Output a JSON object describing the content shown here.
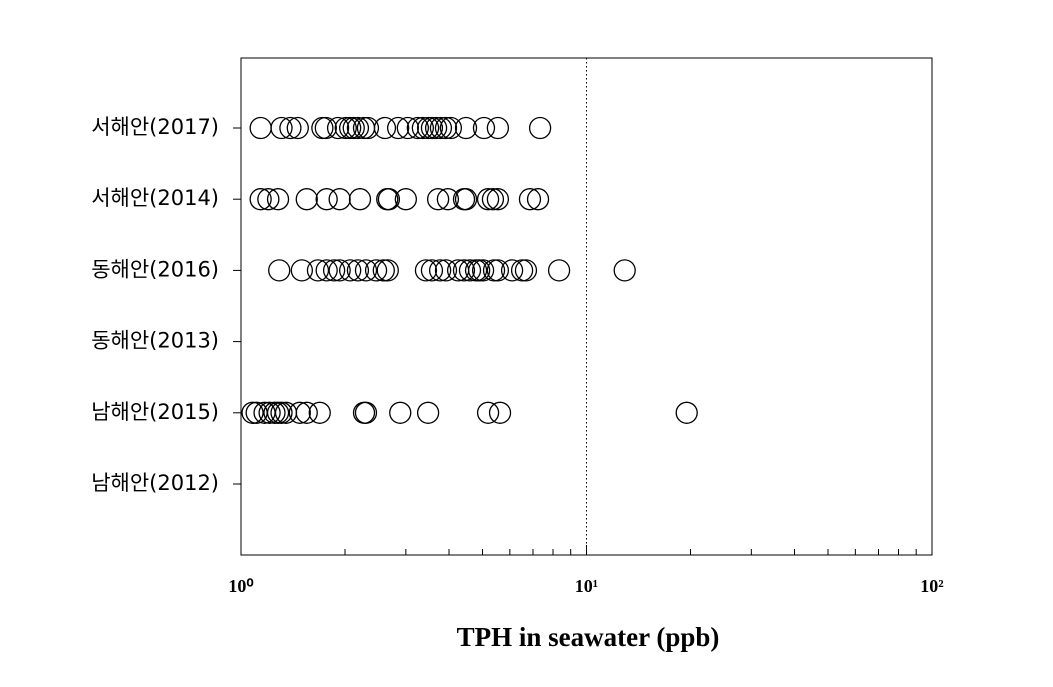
{
  "chart_data": {
    "type": "strip",
    "x_scale": "log",
    "categories": [
      "서해안(2017)",
      "서해안(2014)",
      "동해안(2016)",
      "동해안(2013)",
      "남해안(2015)",
      "남해안(2012)"
    ],
    "values": [
      [
        1.14,
        1.31,
        1.39,
        1.46,
        1.72,
        1.76,
        1.91,
        2.01,
        2.07,
        2.12,
        2.18,
        2.27,
        2.33,
        2.61,
        2.85,
        3.04,
        3.25,
        3.36,
        3.48,
        3.57,
        3.67,
        3.79,
        3.92,
        4.05,
        4.48,
        5.05,
        5.54,
        7.34
      ],
      [
        1.14,
        1.2,
        1.28,
        1.55,
        1.77,
        1.93,
        2.21,
        2.65,
        2.68,
        3.0,
        3.72,
        3.97,
        4.42,
        4.48,
        5.19,
        5.36,
        5.54,
        6.86,
        7.24
      ],
      [
        1.29,
        1.5,
        1.67,
        1.77,
        1.86,
        1.93,
        2.07,
        2.18,
        2.3,
        2.46,
        2.59,
        2.66,
        3.43,
        3.57,
        3.77,
        3.92,
        4.25,
        4.42,
        4.6,
        4.79,
        4.89,
        5.02,
        5.4,
        5.54,
        6.09,
        6.51,
        6.68,
        8.33,
        12.9
      ],
      [],
      [
        1.08,
        1.11,
        1.17,
        1.21,
        1.25,
        1.28,
        1.31,
        1.35,
        1.48,
        1.55,
        1.69,
        2.27,
        2.3,
        2.89,
        3.48,
        5.19,
        5.62,
        19.5
      ],
      []
    ],
    "color": "#000000",
    "xlabel": "TPH in seawater (ppb)",
    "xlim": [
      1,
      100
    ],
    "xticks": [
      {
        "value": 1,
        "label": "10⁰"
      },
      {
        "value": 10,
        "label": "10¹"
      },
      {
        "value": 100,
        "label": "10²"
      }
    ],
    "minor_xticks": [
      2,
      3,
      4,
      5,
      6,
      7,
      8,
      9,
      20,
      30,
      40,
      50,
      60,
      70,
      80,
      90
    ],
    "reference_line": 10
  }
}
